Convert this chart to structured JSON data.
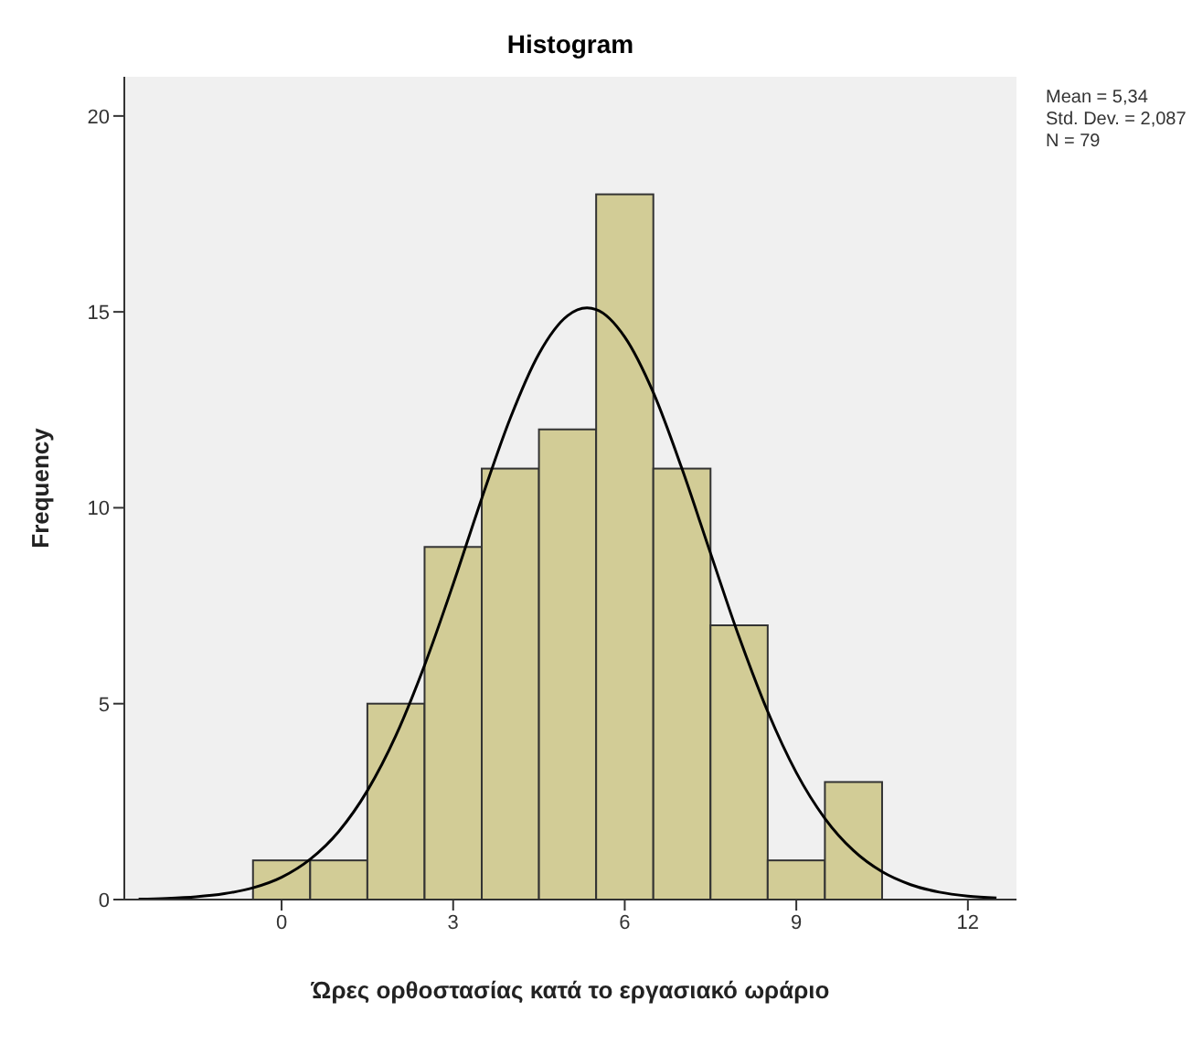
{
  "chart_data": {
    "type": "histogram",
    "title": "Histogram",
    "xlabel": "Ώρες ορθοστασίας κατά το εργασιακό ωράριο",
    "ylabel": "Frequency",
    "bins": [
      -0.5,
      0.5,
      1.5,
      2.5,
      3.5,
      4.5,
      5.5,
      6.5,
      7.5,
      8.5,
      9.5,
      10.5
    ],
    "values": [
      1,
      1,
      5,
      9,
      11,
      12,
      18,
      11,
      7,
      1,
      3
    ],
    "color": "#d2cc96",
    "series": [
      {
        "type": "line",
        "color": "#000000",
        "x": [
          -2.5,
          -2,
          -1.5,
          -1,
          -0.5,
          0,
          0.5,
          1,
          1.5,
          2,
          2.5,
          3,
          3.5,
          4,
          4.5,
          5,
          5.34,
          5.5,
          6,
          6.5,
          7,
          7.5,
          8,
          8.5,
          9,
          9.5,
          10,
          10.5,
          11,
          11.5,
          12,
          12.5
        ],
        "values": [
          0.01,
          0.03,
          0.07,
          0.15,
          0.3,
          0.57,
          1.03,
          1.74,
          2.78,
          4.19,
          5.98,
          8.05,
          10.24,
          12.29,
          13.93,
          14.9,
          15.1,
          15.06,
          14.36,
          12.94,
          11,
          8.84,
          6.7,
          4.8,
          3.24,
          2.07,
          1.25,
          0.71,
          0.38,
          0.19,
          0.09,
          0.04
        ]
      }
    ],
    "xlim": [
      -2.75,
      12.85
    ],
    "ylim": [
      0,
      21
    ],
    "xticks": [
      0,
      3,
      6,
      9,
      12
    ],
    "yticks": [
      0,
      5,
      10,
      15,
      20
    ],
    "annotations": [
      "Mean = 5,34",
      "Std. Dev. = 2,087",
      "N = 79"
    ]
  }
}
